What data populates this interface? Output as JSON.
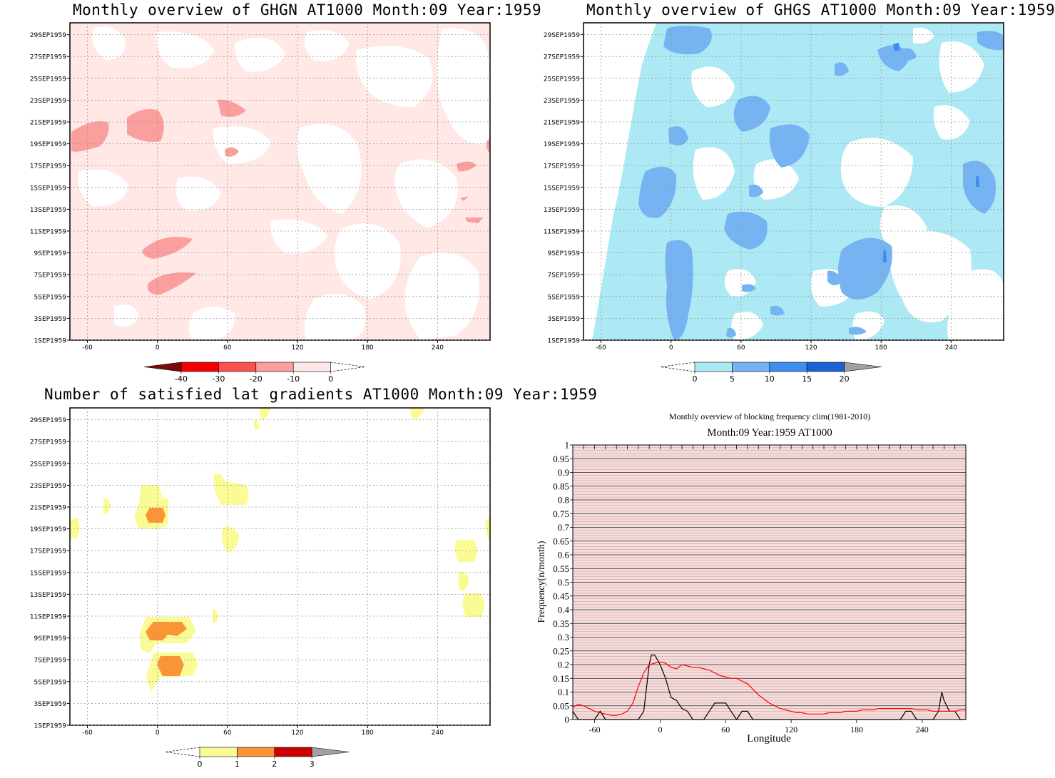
{
  "panels": {
    "ghgn": {
      "title": "Monthly overview of GHGN AT1000 Month:09 Year:1959",
      "colorbar": {
        "labels": [
          "-40",
          "-30",
          "-20",
          "-10",
          "0"
        ],
        "colors": [
          "#7a0b0b",
          "#f40000",
          "#fa5050",
          "#fa9e9e",
          "#fde6e6"
        ],
        "overflow": "none"
      }
    },
    "ghgs": {
      "title": "Monthly overview of GHGS AT1000 Month:09 Year:1959",
      "colorbar": {
        "labels": [
          "0",
          "5",
          "10",
          "15",
          "20"
        ],
        "colors": [
          "#ade9f4",
          "#75b3f2",
          "#3c8ef0",
          "#1a62d6"
        ],
        "overflow": "#a0a0a0"
      }
    },
    "lat": {
      "title": "Number of satisfied lat gradients AT1000 Month:09 Year:1959",
      "colorbar": {
        "labels": [
          "0",
          "1",
          "2",
          "3"
        ],
        "colors": [
          "#fbfb96",
          "#f99535",
          "#cc0000"
        ],
        "overflow": "#a0a0a0"
      }
    },
    "freq": {
      "title_line1": "Monthly overview of blocking frequency clim(1981-2010)",
      "title_line2": "Month:09 Year:1959  AT1000",
      "xlabel": "Longitude",
      "ylabel": "Frequency(n/month)"
    }
  },
  "map_axes": {
    "x_ticks": [
      "-60",
      "0",
      "60",
      "120",
      "180",
      "240"
    ],
    "x_range": [
      -75,
      285
    ],
    "y_ticks": [
      "1SEP1959",
      "3SEP1959",
      "5SEP1959",
      "7SEP1959",
      "9SEP1959",
      "11SEP1959",
      "13SEP1959",
      "15SEP1959",
      "17SEP1959",
      "19SEP1959",
      "21SEP1959",
      "23SEP1959",
      "25SEP1959",
      "27SEP1959",
      "29SEP1959"
    ]
  },
  "chart_data": [
    {
      "type": "heatmap",
      "title": "Monthly overview of GHGN AT1000 Month:09 Year:1959",
      "x_range": [
        -75,
        285
      ],
      "levels": [
        -40,
        -30,
        -20,
        -10,
        0
      ],
      "background_level": "-10 to 0"
    },
    {
      "type": "heatmap",
      "title": "Monthly overview of GHGS AT1000 Month:09 Year:1959",
      "x_range": [
        -75,
        285
      ],
      "levels": [
        0,
        5,
        10,
        15,
        20
      ],
      "background_level": "0 to 5"
    },
    {
      "type": "heatmap",
      "title": "Number of satisfied lat gradients AT1000 Month:09 Year:1959",
      "x_range": [
        -75,
        285
      ],
      "levels": [
        0,
        1,
        2,
        3
      ]
    },
    {
      "type": "line",
      "title": "Monthly overview of blocking frequency clim(1981-2010)",
      "subtitle": "Month:09 Year:1959  AT1000",
      "xlabel": "Longitude",
      "ylabel": "Frequency(n/month)",
      "xlim": [
        -80,
        280
      ],
      "ylim": [
        0,
        1
      ],
      "x_ticks": [
        "-60",
        "0",
        "60",
        "120",
        "180",
        "240"
      ],
      "y_ticks": [
        "0",
        "0.05",
        "0.1",
        "0.15",
        "0.2",
        "0.25",
        "0.3",
        "0.35",
        "0.4",
        "0.45",
        "0.5",
        "0.55",
        "0.6",
        "0.65",
        "0.7",
        "0.75",
        "0.8",
        "0.85",
        "0.9",
        "0.95",
        "1"
      ],
      "series": [
        {
          "color": "#000000",
          "x": [
            -80,
            -75,
            -70,
            -65,
            -60,
            -55,
            -50,
            -45,
            -40,
            -35,
            -30,
            -25,
            -20,
            -15,
            -10,
            -8,
            -5,
            0,
            5,
            10,
            15,
            20,
            25,
            30,
            35,
            40,
            45,
            50,
            55,
            60,
            65,
            70,
            75,
            80,
            85,
            90,
            95,
            100,
            105,
            110,
            115,
            120,
            125,
            130,
            135,
            140,
            145,
            150,
            155,
            160,
            165,
            170,
            175,
            180,
            185,
            190,
            195,
            200,
            205,
            210,
            215,
            220,
            225,
            230,
            235,
            240,
            245,
            250,
            255,
            258,
            260,
            265,
            270,
            275,
            280
          ],
          "y": [
            0.03,
            0.0,
            0.0,
            0.0,
            0.0,
            0.03,
            0.0,
            0.0,
            0.0,
            0.0,
            0.0,
            0.0,
            0.0,
            0.03,
            0.2,
            0.235,
            0.235,
            0.2,
            0.15,
            0.08,
            0.07,
            0.04,
            0.03,
            0.0,
            0.0,
            0.0,
            0.03,
            0.06,
            0.06,
            0.06,
            0.03,
            0.0,
            0.03,
            0.03,
            0.0,
            0.0,
            0.0,
            0.0,
            0.0,
            0.0,
            0.0,
            0.0,
            0.0,
            0.0,
            0.0,
            0.0,
            0.0,
            0.0,
            0.0,
            0.0,
            0.0,
            0.0,
            0.0,
            0.0,
            0.0,
            0.0,
            0.0,
            0.0,
            0.0,
            0.0,
            0.0,
            0.0,
            0.03,
            0.03,
            0.0,
            0.0,
            0.0,
            0.0,
            0.03,
            0.1,
            0.07,
            0.03,
            0.03,
            0.0,
            0.0
          ]
        },
        {
          "color": "#ff0000",
          "x": [
            -80,
            -75,
            -70,
            -65,
            -60,
            -55,
            -50,
            -45,
            -40,
            -35,
            -30,
            -25,
            -20,
            -15,
            -10,
            -5,
            0,
            5,
            10,
            15,
            20,
            25,
            30,
            35,
            40,
            45,
            50,
            55,
            60,
            65,
            70,
            75,
            80,
            85,
            90,
            95,
            100,
            105,
            110,
            115,
            120,
            125,
            130,
            135,
            140,
            145,
            150,
            155,
            160,
            165,
            170,
            175,
            180,
            185,
            190,
            195,
            200,
            205,
            210,
            215,
            220,
            225,
            230,
            235,
            240,
            245,
            250,
            255,
            260,
            265,
            270,
            275,
            280
          ],
          "y": [
            0.045,
            0.055,
            0.05,
            0.04,
            0.03,
            0.025,
            0.02,
            0.015,
            0.015,
            0.02,
            0.03,
            0.06,
            0.12,
            0.17,
            0.2,
            0.205,
            0.21,
            0.205,
            0.19,
            0.185,
            0.2,
            0.195,
            0.19,
            0.19,
            0.185,
            0.18,
            0.17,
            0.16,
            0.155,
            0.15,
            0.15,
            0.14,
            0.13,
            0.11,
            0.09,
            0.075,
            0.06,
            0.05,
            0.04,
            0.035,
            0.03,
            0.025,
            0.025,
            0.02,
            0.02,
            0.02,
            0.02,
            0.025,
            0.025,
            0.025,
            0.03,
            0.03,
            0.03,
            0.035,
            0.035,
            0.035,
            0.04,
            0.04,
            0.04,
            0.04,
            0.04,
            0.04,
            0.04,
            0.035,
            0.035,
            0.035,
            0.03,
            0.03,
            0.03,
            0.03,
            0.03,
            0.035,
            0.035
          ]
        }
      ]
    }
  ]
}
